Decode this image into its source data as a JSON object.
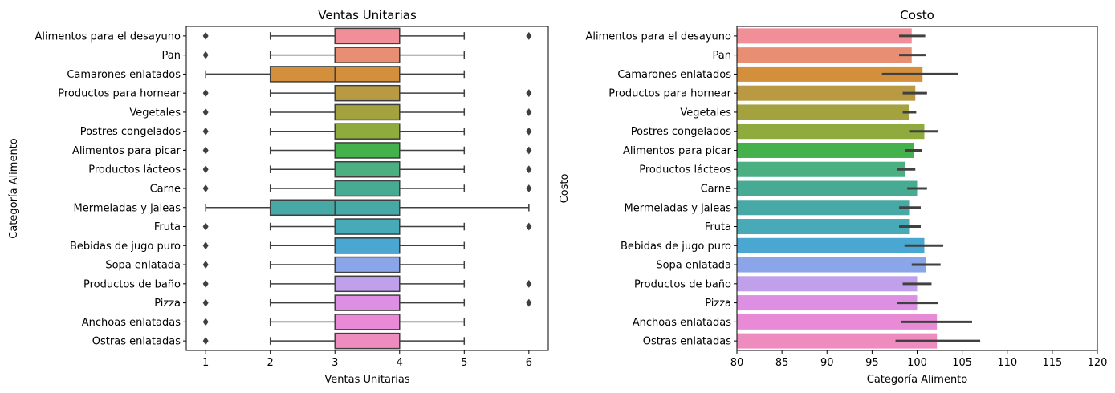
{
  "chart_data": [
    {
      "type": "box",
      "orientation": "horizontal",
      "title": "Ventas Unitarias",
      "xlabel": "Ventas Unitarias",
      "ylabel": "Categoría Alimento",
      "xlim": [
        0.7,
        6.3
      ],
      "xticks": [
        1,
        2,
        3,
        4,
        5,
        6
      ],
      "categories": [
        "Alimentos para el desayuno",
        "Pan",
        "Camarones enlatados",
        "Productos para hornear",
        "Vegetales",
        "Postres congelados",
        "Alimentos para picar",
        "Productos lácteos",
        "Carne",
        "Mermeladas y jaleas",
        "Fruta",
        "Bebidas de jugo puro",
        "Sopa enlatada",
        "Productos de baño",
        "Pizza",
        "Anchoas enlatadas",
        "Ostras enlatadas"
      ],
      "boxes": [
        {
          "whisker_low": 2,
          "q1": 3,
          "median": 4,
          "q3": 4,
          "whisker_high": 5,
          "outliers": [
            1,
            6
          ]
        },
        {
          "whisker_low": 2,
          "q1": 3,
          "median": 4,
          "q3": 4,
          "whisker_high": 5,
          "outliers": [
            1
          ]
        },
        {
          "whisker_low": 1,
          "q1": 2,
          "median": 3,
          "q3": 4,
          "whisker_high": 5,
          "outliers": []
        },
        {
          "whisker_low": 2,
          "q1": 3,
          "median": 4,
          "q3": 4,
          "whisker_high": 5,
          "outliers": [
            1,
            6
          ]
        },
        {
          "whisker_low": 2,
          "q1": 3,
          "median": 4,
          "q3": 4,
          "whisker_high": 5,
          "outliers": [
            1,
            6
          ]
        },
        {
          "whisker_low": 2,
          "q1": 3,
          "median": 4,
          "q3": 4,
          "whisker_high": 5,
          "outliers": [
            1,
            6
          ]
        },
        {
          "whisker_low": 2,
          "q1": 3,
          "median": 4,
          "q3": 4,
          "whisker_high": 5,
          "outliers": [
            1,
            6
          ]
        },
        {
          "whisker_low": 2,
          "q1": 3,
          "median": 4,
          "q3": 4,
          "whisker_high": 5,
          "outliers": [
            1,
            6
          ]
        },
        {
          "whisker_low": 2,
          "q1": 3,
          "median": 4,
          "q3": 4,
          "whisker_high": 5,
          "outliers": [
            1,
            6
          ]
        },
        {
          "whisker_low": 1,
          "q1": 2,
          "median": 3,
          "q3": 4,
          "whisker_high": 6,
          "outliers": []
        },
        {
          "whisker_low": 2,
          "q1": 3,
          "median": 4,
          "q3": 4,
          "whisker_high": 5,
          "outliers": [
            1,
            6
          ]
        },
        {
          "whisker_low": 2,
          "q1": 3,
          "median": 4,
          "q3": 4,
          "whisker_high": 5,
          "outliers": [
            1
          ]
        },
        {
          "whisker_low": 2,
          "q1": 3,
          "median": 4,
          "q3": 4,
          "whisker_high": 5,
          "outliers": [
            1
          ]
        },
        {
          "whisker_low": 2,
          "q1": 3,
          "median": 4,
          "q3": 4,
          "whisker_high": 5,
          "outliers": [
            1,
            6
          ]
        },
        {
          "whisker_low": 2,
          "q1": 3,
          "median": 4,
          "q3": 4,
          "whisker_high": 5,
          "outliers": [
            1,
            6
          ]
        },
        {
          "whisker_low": 2,
          "q1": 3,
          "median": 4,
          "q3": 4,
          "whisker_high": 5,
          "outliers": [
            1
          ]
        },
        {
          "whisker_low": 2,
          "q1": 3,
          "median": 4,
          "q3": 4,
          "whisker_high": 5,
          "outliers": [
            1
          ]
        }
      ],
      "grid": false
    },
    {
      "type": "bar",
      "orientation": "horizontal",
      "title": "Costo",
      "xlabel": "Categoría Alimento",
      "ylabel": "Costo",
      "xlim": [
        80,
        120
      ],
      "xticks": [
        80,
        85,
        90,
        95,
        100,
        105,
        110,
        115,
        120
      ],
      "categories": [
        "Alimentos para el desayuno",
        "Pan",
        "Camarones enlatados",
        "Productos para hornear",
        "Vegetales",
        "Postres congelados",
        "Alimentos para picar",
        "Productos lácteos",
        "Carne",
        "Mermeladas y jaleas",
        "Fruta",
        "Bebidas de jugo puro",
        "Sopa enlatada",
        "Productos de baño",
        "Pizza",
        "Anchoas enlatadas",
        "Ostras enlatadas"
      ],
      "values": [
        99.4,
        99.4,
        100.6,
        99.8,
        99.1,
        100.8,
        99.6,
        98.7,
        100.0,
        99.2,
        99.2,
        100.8,
        101.0,
        100.0,
        100.0,
        102.2,
        102.2
      ],
      "error_low": [
        98.0,
        98.0,
        96.1,
        98.4,
        98.4,
        99.2,
        98.7,
        97.8,
        98.9,
        98.0,
        98.0,
        98.6,
        99.4,
        98.4,
        97.8,
        98.2,
        97.6
      ],
      "error_high": [
        100.9,
        101.0,
        104.5,
        101.1,
        99.9,
        102.3,
        100.5,
        99.8,
        101.1,
        100.4,
        100.4,
        102.9,
        102.6,
        101.6,
        102.3,
        106.1,
        107.0
      ],
      "grid": false
    }
  ],
  "palette": [
    "#f08f98",
    "#e88f73",
    "#d48f3c",
    "#b99a42",
    "#a4a23f",
    "#8faa3d",
    "#45b14d",
    "#4aaf81",
    "#47ab94",
    "#47a9a5",
    "#48aab6",
    "#4aa7d2",
    "#8aa6e8",
    "#c0a0ea",
    "#dc8fe3",
    "#e98ad7",
    "#ee8cc0"
  ]
}
